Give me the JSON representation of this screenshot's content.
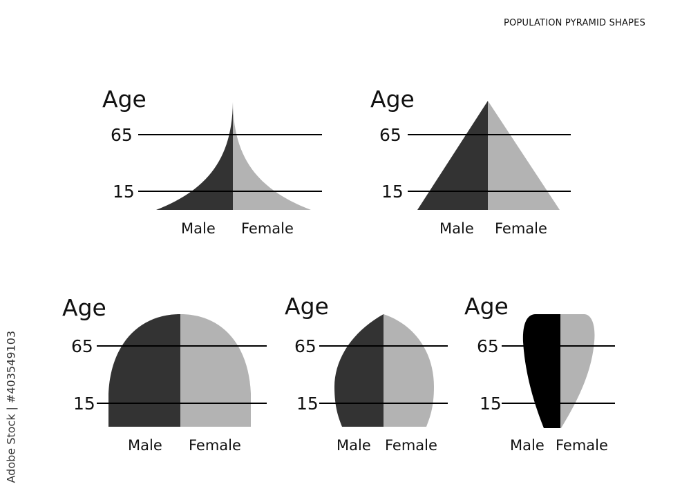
{
  "title": "POPULATION PYRAMID SHAPES",
  "watermark": "Adobe Stock | #403549103",
  "colors": {
    "male": "#333333",
    "female": "#b3b3b3",
    "male_dark": "#000000",
    "line": "#000000"
  },
  "labels": {
    "age": "Age",
    "upper": "65",
    "lower": "15",
    "male": "Male",
    "female": "Female"
  },
  "diagrams": [
    {
      "shape": "concave pyramid"
    },
    {
      "shape": "triangle pyramid"
    },
    {
      "shape": "wide dome"
    },
    {
      "shape": "narrow dome"
    },
    {
      "shape": "inverted teardrop"
    }
  ]
}
